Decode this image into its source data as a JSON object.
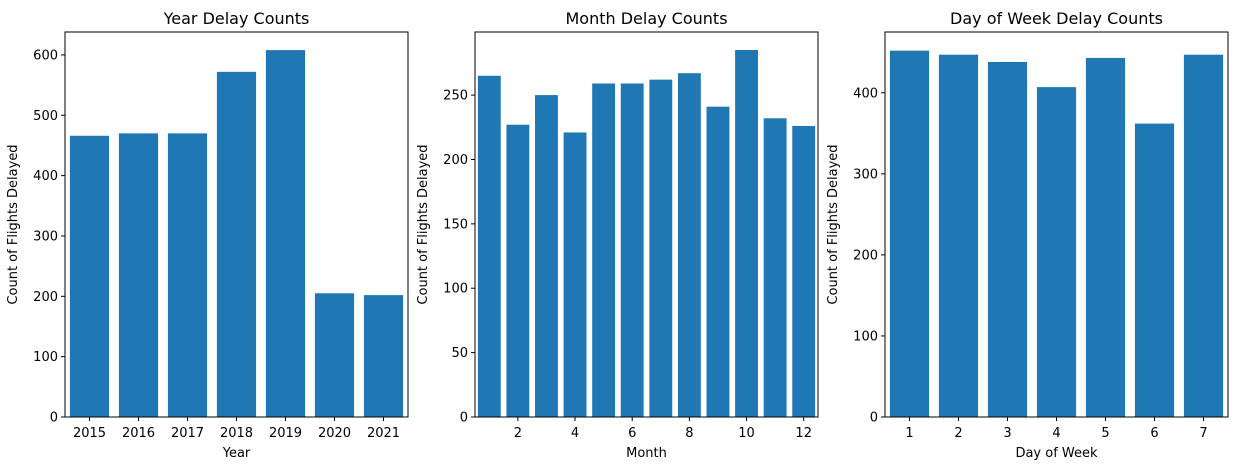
{
  "chart_data": [
    {
      "type": "bar",
      "title": "Year Delay Counts",
      "xlabel": "Year",
      "ylabel": "Count of Flights Delayed",
      "categories": [
        "2015",
        "2016",
        "2017",
        "2018",
        "2019",
        "2020",
        "2021"
      ],
      "values": [
        466,
        470,
        470,
        572,
        608,
        205,
        202
      ],
      "ylim": [
        0,
        638
      ],
      "yticks": [
        0,
        100,
        200,
        300,
        400,
        500,
        600
      ],
      "color": "#1f77b4"
    },
    {
      "type": "bar",
      "title": "Month Delay Counts",
      "xlabel": "Month",
      "ylabel": "Count of Flights Delayed",
      "categories": [
        "1",
        "2",
        "3",
        "4",
        "5",
        "6",
        "7",
        "8",
        "9",
        "10",
        "11",
        "12"
      ],
      "values": [
        265,
        227,
        250,
        221,
        259,
        259,
        262,
        267,
        241,
        285,
        232,
        226
      ],
      "xticks": [
        "2",
        "4",
        "6",
        "8",
        "10",
        "12"
      ],
      "ylim": [
        0,
        299
      ],
      "yticks": [
        0,
        50,
        100,
        150,
        200,
        250
      ],
      "color": "#1f77b4"
    },
    {
      "type": "bar",
      "title": "Day of Week Delay Counts",
      "xlabel": "Day of Week",
      "ylabel": "Count of Flights Delayed",
      "categories": [
        "1",
        "2",
        "3",
        "4",
        "5",
        "6",
        "7"
      ],
      "values": [
        452,
        447,
        438,
        407,
        443,
        362,
        447
      ],
      "ylim": [
        0,
        475
      ],
      "yticks": [
        0,
        100,
        200,
        300,
        400
      ],
      "color": "#1f77b4"
    }
  ]
}
